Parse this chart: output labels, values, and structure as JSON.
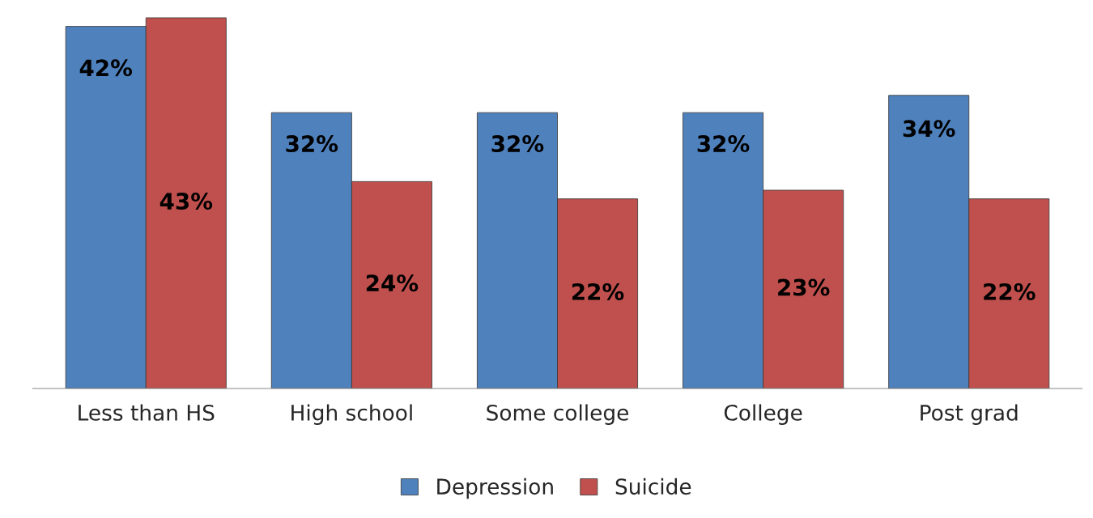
{
  "chart_data": {
    "type": "bar",
    "categories": [
      "Less than HS",
      "High school",
      "Some college",
      "College",
      "Post grad"
    ],
    "series": [
      {
        "name": "Depression",
        "color": "#4f81bd",
        "values": [
          42,
          32,
          32,
          32,
          34
        ],
        "value_labels": [
          "42%",
          "32%",
          "32%",
          "32%",
          "34%"
        ]
      },
      {
        "name": "Suicide",
        "color": "#c0504d",
        "values": [
          43,
          24,
          22,
          23,
          22
        ],
        "value_labels": [
          "43%",
          "24%",
          "22%",
          "23%",
          "22%"
        ]
      }
    ],
    "legend": "bottom",
    "grid": false
  }
}
